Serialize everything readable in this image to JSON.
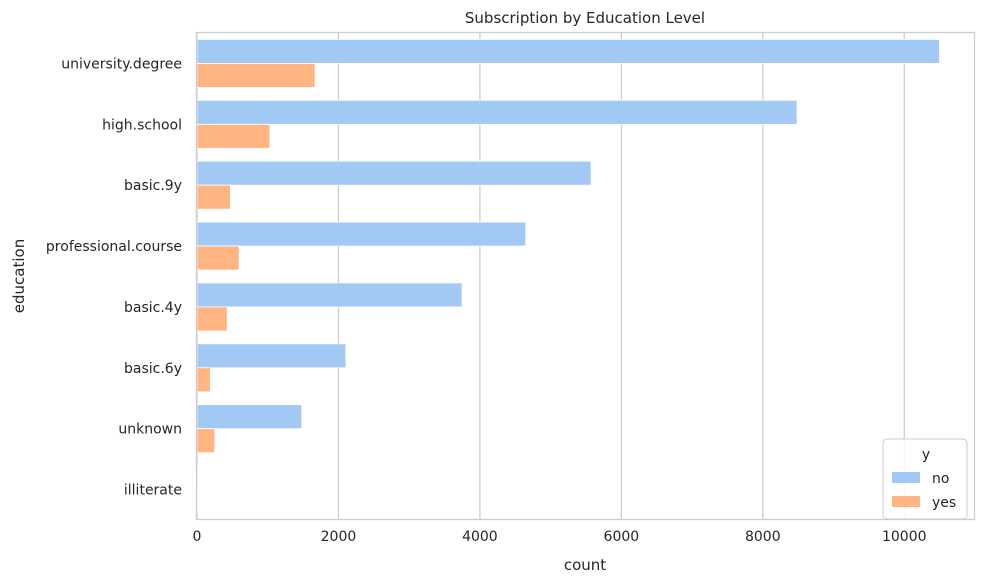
{
  "chart_data": {
    "type": "bar",
    "orientation": "horizontal",
    "title": "Subscription by Education Level",
    "xlabel": "count",
    "ylabel": "education",
    "categories": [
      "university.degree",
      "high.school",
      "basic.9y",
      "professional.course",
      "basic.4y",
      "basic.6y",
      "unknown",
      "illiterate"
    ],
    "series": [
      {
        "name": "no",
        "color": "#a1c9f4",
        "values": [
          10498,
          8484,
          5572,
          4648,
          3748,
          2104,
          1480,
          14
        ]
      },
      {
        "name": "yes",
        "color": "#ffb482",
        "values": [
          1670,
          1031,
          473,
          595,
          428,
          188,
          251,
          4
        ]
      }
    ],
    "xlim": [
      0,
      11000
    ],
    "xticks": [
      0,
      2000,
      4000,
      6000,
      8000,
      10000
    ],
    "grid": "vertical",
    "legend": {
      "title": "y",
      "placement": "bottom-right"
    }
  }
}
